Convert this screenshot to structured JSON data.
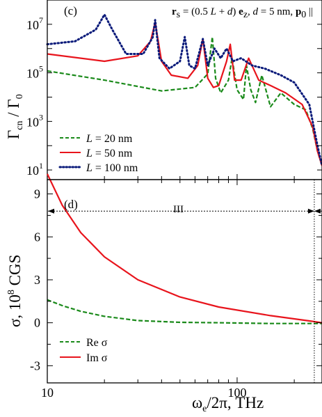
{
  "chart_data": [
    {
      "type": "line",
      "panel": "(c)",
      "annotation": {
        "prefix": "r",
        "prefix_sub": "s",
        "mid1": " = (0.5 ",
        "L": "L",
        "mid2": " + ",
        "d": "d",
        "mid3": ") ",
        "e": "e",
        "e_sub": "z",
        "mid4": ", ",
        "d2": "d",
        "mid5": " = 5 nm, ",
        "p": "p",
        "p_sub": "0",
        "tail": " || "
      },
      "ylabel": {
        "main": "Γ",
        "main_sub": "cn",
        "sep": " / Γ",
        "sep_sub": "0"
      },
      "yscale": "log",
      "ylim": [
        4,
        100000000
      ],
      "xscale": "log",
      "xlim": [
        10,
        280
      ],
      "ytick_labels": [
        {
          "base": "10",
          "exp": "1",
          "value": 10
        },
        {
          "base": "10",
          "exp": "3",
          "value": 1000
        },
        {
          "base": "10",
          "exp": "5",
          "value": 100000
        },
        {
          "base": "10",
          "exp": "7",
          "value": 10000000
        }
      ],
      "legend_placement": "bottom-left",
      "series": [
        {
          "name": "L = 20 nm",
          "name_parts": [
            "L",
            " = 20 nm"
          ],
          "style": "dashed",
          "color": "#1a8a1a",
          "x": [
            10,
            20,
            40,
            60,
            70,
            74,
            77,
            82,
            90,
            94,
            100,
            108,
            112,
            118,
            125,
            135,
            150,
            170,
            200,
            230,
            250,
            265,
            280
          ],
          "y": [
            120000,
            50000,
            18000,
            25000,
            90000,
            3000000,
            60000,
            15000,
            50000,
            400000,
            20000,
            8000,
            200000,
            20000,
            6000,
            80000,
            4000,
            15000,
            5000,
            3000,
            500,
            60,
            15
          ]
        },
        {
          "name": "L = 50 nm",
          "name_parts": [
            "L",
            " = 50 nm"
          ],
          "style": "solid",
          "color": "#e8141c",
          "x": [
            10,
            20,
            30,
            35,
            37,
            40,
            45,
            55,
            62,
            66,
            70,
            75,
            80,
            88,
            92,
            97,
            105,
            115,
            130,
            150,
            180,
            220,
            250,
            265,
            280
          ],
          "y": [
            600000,
            300000,
            500000,
            2000000,
            12000000,
            300000,
            80000,
            60000,
            200000,
            2500000,
            60000,
            25000,
            30000,
            300000,
            1500000,
            50000,
            50000,
            400000,
            50000,
            30000,
            15000,
            5000,
            600,
            60,
            15
          ]
        },
        {
          "name": "L = 100 nm",
          "name_parts": [
            "L",
            " = 100 nm"
          ],
          "style": "dotted",
          "color": "#0a1a7a",
          "x": [
            10,
            14,
            18,
            20,
            22,
            26,
            32,
            36,
            37,
            39,
            44,
            50,
            53,
            56,
            60,
            66,
            70,
            76,
            82,
            88,
            95,
            105,
            120,
            140,
            170,
            200,
            240,
            265,
            280
          ],
          "y": [
            1500000,
            2000000,
            6000000,
            25000000,
            6000000,
            600000,
            600000,
            3000000,
            15000000,
            400000,
            150000,
            300000,
            3000000,
            200000,
            150000,
            2500000,
            200000,
            1000000,
            400000,
            1000000,
            300000,
            400000,
            200000,
            150000,
            80000,
            40000,
            5000,
            100,
            15
          ]
        }
      ]
    },
    {
      "type": "line",
      "panel": "(d)",
      "ylabel": {
        "main": "σ, 10",
        "exp": "8",
        "tail": " CGS"
      },
      "xlabel": {
        "main": "ω",
        "main_sub": "e",
        "tail": "/2π, THz"
      },
      "xscale": "log",
      "xlim": [
        10,
        280
      ],
      "ylim": [
        -4.2,
        10
      ],
      "xtick_labels": [
        {
          "label": "10",
          "value": 10
        },
        {
          "label": "100",
          "value": 100
        }
      ],
      "ytick_labels": [
        {
          "label": "-3",
          "value": -3
        },
        {
          "label": "0",
          "value": 0
        },
        {
          "label": "3",
          "value": 3
        },
        {
          "label": "6",
          "value": 6
        },
        {
          "label": "9",
          "value": 9
        }
      ],
      "region_label": "III",
      "region_arrow": {
        "from": 10,
        "to": 255,
        "y": 7.8
      },
      "vertical_line_x": 255,
      "legend_placement": "bottom-left",
      "series": [
        {
          "name": "Re σ",
          "name_parts": [
            "Re ",
            "σ"
          ],
          "style": "dashed",
          "color": "#1a8a1a",
          "x": [
            10,
            12,
            15,
            20,
            30,
            50,
            80,
            150,
            280
          ],
          "y": [
            1.6,
            1.2,
            0.8,
            0.45,
            0.15,
            0.03,
            0.0,
            -0.05,
            -0.05
          ]
        },
        {
          "name": "Im σ",
          "name_parts": [
            "Im ",
            "σ"
          ],
          "style": "solid",
          "color": "#e8141c",
          "x": [
            10,
            12,
            15,
            20,
            30,
            50,
            80,
            150,
            250,
            280
          ],
          "y": [
            10.4,
            8.2,
            6.3,
            4.6,
            3.0,
            1.8,
            1.1,
            0.5,
            0.1,
            0.0
          ]
        }
      ]
    }
  ]
}
